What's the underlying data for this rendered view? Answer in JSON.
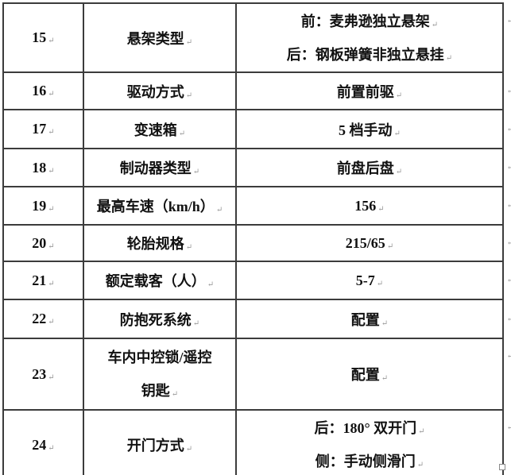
{
  "marks": {
    "line_end": "↵"
  },
  "table": {
    "rows": [
      {
        "num": "15",
        "label_lines": [
          "悬架类型"
        ],
        "value_lines": [
          "前：麦弗逊独立悬架",
          "后：钢板弹簧非独立悬挂"
        ]
      },
      {
        "num": "16",
        "label_lines": [
          "驱动方式"
        ],
        "value_lines": [
          "前置前驱"
        ]
      },
      {
        "num": "17",
        "label_lines": [
          "变速箱"
        ],
        "value_lines": [
          "5 档手动"
        ]
      },
      {
        "num": "18",
        "label_lines": [
          "制动器类型"
        ],
        "value_lines": [
          "前盘后盘"
        ]
      },
      {
        "num": "19",
        "label_lines": [
          "最高车速（km/h）"
        ],
        "value_lines": [
          "156"
        ]
      },
      {
        "num": "20",
        "label_lines": [
          "轮胎规格"
        ],
        "value_lines": [
          "215/65"
        ]
      },
      {
        "num": "21",
        "label_lines": [
          "额定载客（人）"
        ],
        "value_lines": [
          "5-7"
        ]
      },
      {
        "num": "22",
        "label_lines": [
          "防抱死系统"
        ],
        "value_lines": [
          "配置"
        ]
      },
      {
        "num": "23",
        "label_lines": [
          "车内中控锁/遥控",
          "钥匙"
        ],
        "value_lines": [
          "配置"
        ]
      },
      {
        "num": "24",
        "label_lines": [
          "开门方式"
        ],
        "value_lines": [
          "后：180° 双开门",
          "侧：手动侧滑门"
        ]
      }
    ]
  }
}
